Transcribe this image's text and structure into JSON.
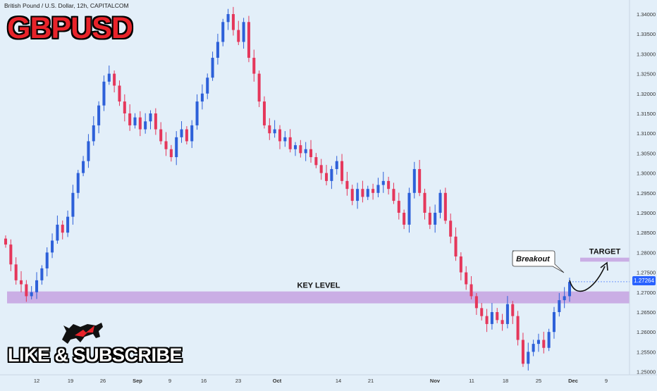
{
  "header": {
    "symbol_description": "British Pound / U.S. Dollar, 12h, CAPITALCOM",
    "big_title": "GBPUSD",
    "subscribe_label": "LIKE & SUBSCRIBE"
  },
  "colors": {
    "up": "#2d60d9",
    "down": "#e5375b",
    "zone": "#c7a6e2",
    "background": "#e3eff9",
    "price_tag": "#2962ff"
  },
  "annotations": {
    "key_level_label": "KEY LEVEL",
    "target_label": "TARGET",
    "breakout_label": "Breakout"
  },
  "chart_data": {
    "type": "candlestick",
    "title": "GBPUSD",
    "y_ticks": [
      "1.34000",
      "1.33500",
      "1.33000",
      "1.32500",
      "1.32000",
      "1.31500",
      "1.31000",
      "1.30500",
      "1.30000",
      "1.29500",
      "1.29000",
      "1.28500",
      "1.28000",
      "1.27500",
      "1.27000",
      "1.26500",
      "1.26000",
      "1.25500",
      "1.25000"
    ],
    "x_ticks": [
      "12",
      "19",
      "26",
      "Sep",
      "9",
      "16",
      "23",
      "Oct",
      "14",
      "21",
      "Nov",
      "11",
      "18",
      "25",
      "Dec",
      "9"
    ],
    "ylim": [
      1.2475,
      1.3425
    ],
    "current_price": "1.27264",
    "key_level_zone": [
      1.2672,
      1.2702
    ],
    "target_zone": [
      1.2777,
      1.2787
    ],
    "close_path": [
      1.282,
      1.277,
      1.273,
      1.272,
      1.269,
      1.27,
      1.273,
      1.276,
      1.28,
      1.283,
      1.287,
      1.285,
      1.289,
      1.295,
      1.3,
      1.303,
      1.308,
      1.312,
      1.317,
      1.323,
      1.325,
      1.322,
      1.318,
      1.315,
      1.312,
      1.314,
      1.311,
      1.313,
      1.315,
      1.311,
      1.308,
      1.306,
      1.304,
      1.309,
      1.311,
      1.308,
      1.312,
      1.318,
      1.32,
      1.324,
      1.329,
      1.333,
      1.338,
      1.34,
      1.336,
      1.333,
      1.338,
      1.329,
      1.325,
      1.318,
      1.312,
      1.31,
      1.311,
      1.308,
      1.309,
      1.306,
      1.307,
      1.305,
      1.306,
      1.304,
      1.302,
      1.3,
      1.298,
      1.301,
      1.303,
      1.298,
      1.296,
      1.293,
      1.296,
      1.294,
      1.296,
      1.295,
      1.297,
      1.298,
      1.296,
      1.293,
      1.29,
      1.287,
      1.295,
      1.301,
      1.295,
      1.29,
      1.287,
      1.29,
      1.295,
      1.288,
      1.284,
      1.279,
      1.275,
      1.272,
      1.269,
      1.266,
      1.264,
      1.262,
      1.265,
      1.263,
      1.262,
      1.267,
      1.264,
      1.258,
      1.252,
      1.255,
      1.257,
      1.258,
      1.256,
      1.26,
      1.265,
      1.268,
      1.269,
      1.2726
    ]
  }
}
